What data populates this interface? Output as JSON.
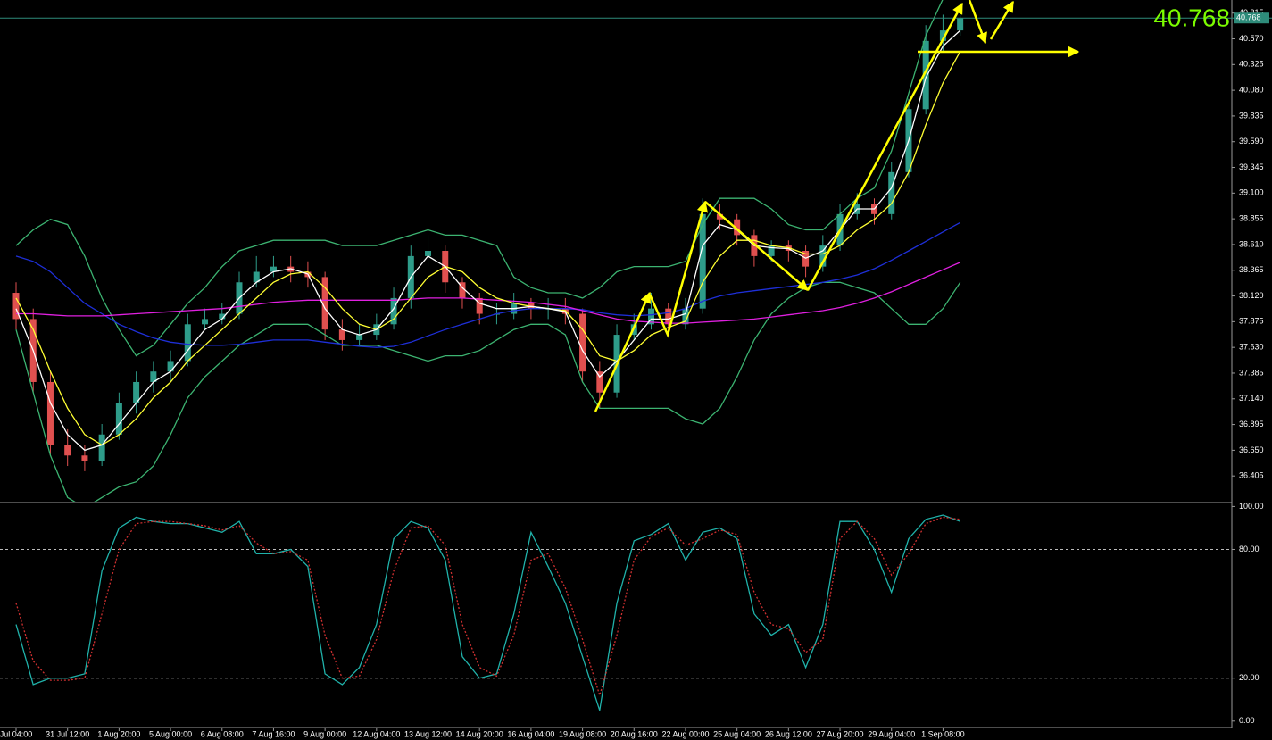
{
  "chart_data": [
    {
      "type": "candlestick",
      "categories": [
        "Jul 04:00",
        null,
        null,
        "31 Jul 12:00",
        null,
        null,
        "1 Aug 20:00",
        null,
        null,
        "5 Aug 00:00",
        null,
        null,
        "6 Aug 08:00",
        null,
        null,
        "7 Aug 16:00",
        null,
        null,
        "9 Aug 00:00",
        null,
        null,
        "12 Aug 04:00",
        null,
        null,
        "13 Aug 12:00",
        null,
        null,
        "14 Aug 20:00",
        null,
        null,
        "16 Aug 04:00",
        null,
        null,
        "19 Aug 08:00",
        null,
        null,
        "20 Aug 16:00",
        null,
        null,
        "22 Aug 00:00",
        null,
        null,
        "25 Aug 04:00",
        null,
        null,
        "26 Aug 12:00",
        null,
        null,
        "27 Aug 20:00",
        null,
        null,
        "29 Aug 04:00",
        null,
        null,
        "1 Sep 08:00",
        null
      ],
      "open": [
        38.15,
        37.9,
        37.3,
        36.7,
        36.6,
        36.55,
        36.8,
        37.1,
        37.3,
        37.4,
        37.5,
        37.85,
        37.9,
        37.95,
        38.25,
        38.35,
        38.4,
        38.35,
        38.3,
        37.8,
        37.7,
        37.75,
        37.85,
        38.1,
        38.5,
        38.55,
        38.25,
        38.1,
        37.95,
        37.95,
        38.05,
        38.0,
        38.0,
        37.95,
        37.4,
        37.2,
        37.75,
        37.85,
        38.0,
        37.85,
        38.0,
        38.9,
        38.85,
        38.7,
        38.5,
        38.6,
        38.55,
        38.4,
        38.6,
        38.9,
        39.0,
        38.9,
        39.3,
        39.9,
        40.55,
        40.65
      ],
      "high": [
        38.25,
        38.0,
        37.4,
        36.85,
        36.7,
        36.9,
        37.2,
        37.4,
        37.5,
        37.6,
        37.95,
        38.0,
        38.05,
        38.35,
        38.5,
        38.5,
        38.5,
        38.45,
        38.35,
        37.9,
        37.85,
        37.95,
        38.2,
        38.6,
        38.7,
        38.6,
        38.3,
        38.15,
        38.05,
        38.15,
        38.1,
        38.1,
        38.1,
        38.0,
        37.5,
        37.85,
        37.95,
        38.15,
        38.05,
        38.1,
        39.05,
        39.0,
        38.9,
        38.75,
        38.65,
        38.65,
        38.6,
        38.7,
        39.0,
        39.1,
        39.05,
        39.4,
        40.0,
        40.7,
        40.8,
        40.85
      ],
      "low": [
        37.8,
        37.2,
        36.6,
        36.5,
        36.45,
        36.5,
        36.75,
        37.0,
        37.2,
        37.3,
        37.45,
        37.8,
        37.85,
        37.9,
        38.2,
        38.3,
        38.25,
        38.2,
        37.7,
        37.6,
        37.65,
        37.7,
        37.8,
        38.0,
        38.4,
        38.15,
        38.0,
        37.85,
        37.85,
        37.9,
        37.9,
        37.9,
        37.85,
        37.3,
        37.05,
        37.15,
        37.7,
        37.8,
        37.75,
        37.8,
        37.95,
        38.75,
        38.6,
        38.4,
        38.45,
        38.45,
        38.3,
        38.35,
        38.55,
        38.85,
        38.8,
        38.85,
        39.25,
        39.85,
        40.45,
        40.6
      ],
      "close": [
        37.9,
        37.3,
        36.7,
        36.6,
        36.55,
        36.8,
        37.1,
        37.3,
        37.4,
        37.5,
        37.85,
        37.9,
        37.95,
        38.25,
        38.35,
        38.4,
        38.35,
        38.3,
        37.8,
        37.7,
        37.75,
        37.85,
        38.1,
        38.5,
        38.55,
        38.25,
        38.1,
        37.95,
        37.95,
        38.05,
        38.0,
        38.0,
        37.95,
        37.4,
        37.2,
        37.75,
        37.85,
        38.0,
        37.85,
        38.0,
        38.9,
        38.85,
        38.7,
        38.5,
        38.6,
        38.55,
        38.4,
        38.6,
        38.9,
        39.0,
        38.9,
        39.3,
        39.9,
        40.55,
        40.65,
        40.768
      ],
      "up_color": "#2e9c8a",
      "down_color": "#e0504f",
      "series": [
        {
          "color": "#3cb371",
          "values": [
            38.6,
            38.75,
            38.85,
            38.8,
            38.5,
            38.1,
            37.8,
            37.55,
            37.65,
            37.85,
            38.05,
            38.2,
            38.4,
            38.55,
            38.6,
            38.65,
            38.65,
            38.65,
            38.65,
            38.6,
            38.6,
            38.6,
            38.65,
            38.7,
            38.75,
            38.7,
            38.7,
            38.65,
            38.6,
            38.3,
            38.2,
            38.15,
            38.15,
            38.1,
            38.2,
            38.35,
            38.4,
            38.4,
            38.4,
            38.45,
            38.8,
            39.05,
            39.05,
            39.05,
            38.95,
            38.8,
            38.75,
            38.75,
            38.9,
            39.05,
            39.15,
            39.5,
            40.05,
            40.6,
            40.95,
            41.1
          ]
        },
        {
          "color": "#3cb371",
          "values": [
            37.8,
            37.2,
            36.6,
            36.2,
            36.1,
            36.2,
            36.3,
            36.35,
            36.5,
            36.8,
            37.15,
            37.35,
            37.5,
            37.65,
            37.75,
            37.85,
            37.85,
            37.85,
            37.75,
            37.65,
            37.65,
            37.65,
            37.6,
            37.55,
            37.5,
            37.55,
            37.55,
            37.6,
            37.7,
            37.8,
            37.85,
            37.85,
            37.75,
            37.3,
            37.05,
            37.05,
            37.05,
            37.05,
            37.05,
            36.95,
            36.9,
            37.05,
            37.35,
            37.7,
            37.95,
            38.1,
            38.2,
            38.25,
            38.25,
            38.2,
            38.15,
            38.0,
            37.85,
            37.85,
            38.0,
            38.25
          ]
        },
        {
          "color": "#1e2fd8",
          "values": [
            38.5,
            38.45,
            38.35,
            38.2,
            38.05,
            37.95,
            37.85,
            37.78,
            37.72,
            37.68,
            37.66,
            37.65,
            37.65,
            37.66,
            37.68,
            37.7,
            37.7,
            37.7,
            37.68,
            37.66,
            37.64,
            37.63,
            37.64,
            37.68,
            37.74,
            37.8,
            37.85,
            37.9,
            37.95,
            37.98,
            38.0,
            38.0,
            38.0,
            37.99,
            37.96,
            37.94,
            37.93,
            37.94,
            37.96,
            38.0,
            38.07,
            38.12,
            38.15,
            38.17,
            38.19,
            38.21,
            38.23,
            38.25,
            38.28,
            38.32,
            38.38,
            38.46,
            38.55,
            38.64,
            38.73,
            38.82
          ]
        },
        {
          "color": "#e020e0",
          "values": [
            37.95,
            37.95,
            37.94,
            37.93,
            37.93,
            37.93,
            37.94,
            37.95,
            37.96,
            37.97,
            37.98,
            37.99,
            38.0,
            38.02,
            38.04,
            38.06,
            38.07,
            38.08,
            38.08,
            38.08,
            38.08,
            38.08,
            38.08,
            38.09,
            38.1,
            38.1,
            38.1,
            38.09,
            38.08,
            38.07,
            38.06,
            38.04,
            38.02,
            37.98,
            37.94,
            37.9,
            37.88,
            37.87,
            37.86,
            37.86,
            37.87,
            37.88,
            37.89,
            37.9,
            37.92,
            37.94,
            37.96,
            37.98,
            38.01,
            38.05,
            38.1,
            38.16,
            38.23,
            38.3,
            38.37,
            38.44
          ]
        },
        {
          "color": "#ffff33",
          "values": [
            38.1,
            37.8,
            37.4,
            37.05,
            36.8,
            36.7,
            36.8,
            36.95,
            37.15,
            37.3,
            37.5,
            37.65,
            37.8,
            37.95,
            38.1,
            38.25,
            38.33,
            38.35,
            38.2,
            38.0,
            37.85,
            37.8,
            37.9,
            38.1,
            38.3,
            38.4,
            38.35,
            38.2,
            38.1,
            38.05,
            38.02,
            38.0,
            37.98,
            37.8,
            37.55,
            37.5,
            37.6,
            37.75,
            37.82,
            37.88,
            38.25,
            38.5,
            38.65,
            38.65,
            38.6,
            38.58,
            38.52,
            38.52,
            38.6,
            38.75,
            38.85,
            39.0,
            39.3,
            39.75,
            40.15,
            40.45
          ]
        },
        {
          "color": "#ffffff",
          "values": [
            38.0,
            37.6,
            37.1,
            36.8,
            36.65,
            36.7,
            36.9,
            37.1,
            37.3,
            37.4,
            37.6,
            37.8,
            37.9,
            38.1,
            38.25,
            38.35,
            38.38,
            38.33,
            38.0,
            37.8,
            37.75,
            37.8,
            38.0,
            38.3,
            38.5,
            38.4,
            38.2,
            38.05,
            38.0,
            38.0,
            38.02,
            38.0,
            37.97,
            37.6,
            37.35,
            37.5,
            37.7,
            37.9,
            37.9,
            37.95,
            38.6,
            38.8,
            38.75,
            38.6,
            38.58,
            38.57,
            38.48,
            38.55,
            38.75,
            38.95,
            38.95,
            39.15,
            39.6,
            40.2,
            40.5,
            40.65
          ]
        }
      ],
      "current_price": 40.768,
      "ylim": [
        36.16,
        40.94
      ],
      "yticks": [
        40.815,
        {
          "value": 40.57,
          "label": "40.570"
        },
        40.325,
        {
          "value": 40.08,
          "label": "40.080"
        },
        39.835,
        {
          "value": 39.59,
          "label": "39.590"
        },
        39.345,
        {
          "value": 39.1,
          "label": "39.100"
        },
        38.855,
        {
          "value": 38.61,
          "label": "38.610"
        },
        38.365,
        {
          "value": 38.12,
          "label": "38.120"
        },
        37.875,
        {
          "value": 37.63,
          "label": "37.630"
        },
        37.385,
        {
          "value": 37.14,
          "label": "37.140"
        },
        36.895,
        {
          "value": 36.65,
          "label": "36.650"
        },
        36.405
      ]
    },
    {
      "type": "line",
      "series": [
        {
          "color": "#20b2aa",
          "style": "solid",
          "values": [
            45,
            17,
            20,
            20,
            22,
            70,
            90,
            95,
            93,
            92,
            92,
            90,
            88,
            93,
            78,
            78,
            80,
            72,
            22,
            17,
            25,
            45,
            85,
            93,
            90,
            75,
            30,
            20,
            22,
            50,
            88,
            72,
            55,
            30,
            5,
            55,
            84,
            87,
            92,
            75,
            88,
            90,
            85,
            50,
            40,
            45,
            25,
            45,
            93,
            93,
            80,
            60,
            85,
            94,
            96,
            93
          ]
        },
        {
          "color": "#d03030",
          "style": "dotted",
          "values": [
            55,
            28,
            19,
            19,
            20,
            50,
            80,
            92,
            93,
            93,
            92,
            91,
            89,
            91,
            83,
            78,
            79,
            75,
            40,
            20,
            21,
            38,
            70,
            90,
            91,
            82,
            45,
            25,
            21,
            40,
            75,
            78,
            62,
            38,
            12,
            40,
            75,
            86,
            90,
            82,
            85,
            89,
            87,
            60,
            45,
            43,
            32,
            38,
            85,
            93,
            85,
            68,
            78,
            92,
            95,
            94
          ]
        }
      ],
      "ylim": [
        -3,
        101
      ],
      "yticks": [
        {
          "value": 100,
          "label": "100.00"
        },
        {
          "value": 80,
          "label": "80.00"
        },
        {
          "value": 20,
          "label": "20.00"
        },
        {
          "value": 0,
          "label": "0.00"
        }
      ]
    }
  ]
}
